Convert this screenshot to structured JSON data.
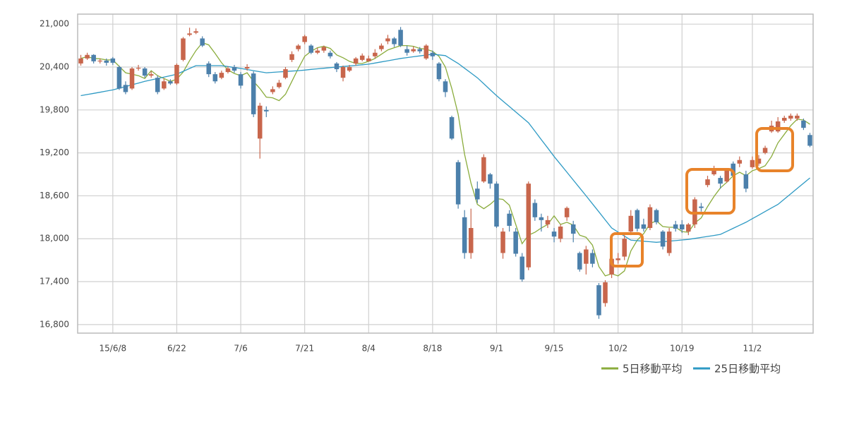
{
  "chart_data": {
    "type": "candlestick",
    "categories": [
      null,
      null,
      null,
      null,
      null,
      "15/6/8",
      null,
      null,
      null,
      null,
      null,
      null,
      null,
      null,
      null,
      "6/22",
      null,
      null,
      null,
      null,
      null,
      null,
      null,
      null,
      null,
      "7/6",
      null,
      null,
      null,
      null,
      null,
      null,
      null,
      null,
      null,
      "7/21",
      null,
      null,
      null,
      null,
      null,
      null,
      null,
      null,
      null,
      "8/4",
      null,
      null,
      null,
      null,
      null,
      null,
      null,
      null,
      null,
      "8/18",
      null,
      null,
      null,
      null,
      null,
      null,
      null,
      null,
      null,
      "9/1",
      null,
      null,
      null,
      null,
      null,
      null,
      null,
      null,
      "9/15",
      null,
      null,
      null,
      null,
      null,
      null,
      null,
      null,
      null,
      "10/2",
      null,
      null,
      null,
      null,
      null,
      null,
      null,
      null,
      null,
      "10/19",
      null,
      null,
      null,
      null,
      null,
      null,
      null,
      null,
      null,
      null,
      "11/2",
      null,
      null,
      null,
      null,
      null,
      null,
      null,
      null,
      null
    ],
    "open": [
      20450,
      20520,
      20570,
      20480,
      20490,
      20520,
      20400,
      20150,
      20100,
      20380,
      20380,
      20280,
      20250,
      20100,
      20200,
      20170,
      20500,
      20850,
      20880,
      20800,
      20450,
      20300,
      20250,
      20330,
      20400,
      20300,
      20380,
      20310,
      19400,
      19800,
      20050,
      20120,
      20250,
      20500,
      20650,
      20750,
      20700,
      20600,
      20630,
      20600,
      20450,
      20250,
      20350,
      20450,
      20500,
      20480,
      20550,
      20650,
      20760,
      20800,
      20920,
      20650,
      20620,
      20650,
      20520,
      20600,
      20450,
      20200,
      19700,
      19070,
      18300,
      17800,
      18700,
      18800,
      18900,
      18770,
      17800,
      18350,
      18100,
      17750,
      17600,
      18500,
      18300,
      18200,
      18100,
      18000,
      18300,
      18200,
      17800,
      17650,
      17800,
      17350,
      17100,
      17500,
      17700,
      17750,
      18100,
      18400,
      18200,
      18150,
      18400,
      18100,
      17800,
      18200,
      18200,
      18100,
      18200,
      18450,
      18750,
      18900,
      18850,
      18800,
      19050,
      19050,
      18900,
      19000,
      19050,
      19200,
      19500,
      19500,
      19650,
      19680,
      19680,
      19650,
      19450
    ],
    "high": [
      20570,
      20600,
      20580,
      20520,
      20520,
      20540,
      20420,
      20200,
      20400,
      20430,
      20400,
      20340,
      20280,
      20240,
      20230,
      20450,
      20820,
      20950,
      20940,
      20830,
      20480,
      20330,
      20350,
      20410,
      20430,
      20330,
      20440,
      20340,
      19900,
      19850,
      20130,
      20220,
      20400,
      20620,
      20720,
      20850,
      20720,
      20670,
      20700,
      20630,
      20470,
      20420,
      20430,
      20540,
      20590,
      20560,
      20650,
      20730,
      20850,
      20820,
      20960,
      20700,
      20690,
      20680,
      20720,
      20630,
      20470,
      20230,
      19720,
      19100,
      18400,
      18420,
      18800,
      19180,
      18920,
      18800,
      18150,
      18400,
      18150,
      17800,
      18800,
      18550,
      18350,
      18320,
      18150,
      18200,
      18450,
      18250,
      17820,
      17900,
      17850,
      17380,
      17420,
      17780,
      17800,
      18050,
      18400,
      18420,
      18280,
      18480,
      18420,
      18120,
      18150,
      18250,
      18260,
      18220,
      18580,
      18500,
      18880,
      19020,
      18880,
      18980,
      19080,
      19150,
      18950,
      19150,
      19170,
      19300,
      19650,
      19700,
      19720,
      19750,
      19750,
      19680,
      19480
    ],
    "low": [
      20420,
      20500,
      20450,
      20450,
      20420,
      20430,
      20080,
      20020,
      20080,
      20350,
      20250,
      20250,
      20020,
      20080,
      20150,
      20150,
      20480,
      20830,
      20860,
      20680,
      20260,
      20170,
      20230,
      20310,
      20320,
      20100,
      20350,
      19700,
      19120,
      19700,
      20020,
      20100,
      20230,
      20470,
      20620,
      20720,
      20580,
      20580,
      20600,
      20520,
      20330,
      20200,
      20330,
      20420,
      20480,
      20480,
      20520,
      20620,
      20720,
      20680,
      20680,
      20560,
      20600,
      20590,
      20500,
      20500,
      20200,
      19980,
      19380,
      18420,
      17720,
      17720,
      18500,
      18780,
      18700,
      18150,
      17720,
      18100,
      17750,
      17400,
      17560,
      18250,
      18100,
      18150,
      17950,
      17950,
      18250,
      17950,
      17540,
      17500,
      17600,
      16880,
      17050,
      17450,
      17650,
      17700,
      18050,
      18100,
      18100,
      18120,
      18200,
      17850,
      17760,
      18100,
      18080,
      18050,
      18150,
      18380,
      18720,
      18880,
      18700,
      18780,
      18850,
      19000,
      18650,
      18980,
      19020,
      19180,
      19480,
      19480,
      19620,
      19650,
      19650,
      19520,
      19280
    ],
    "close": [
      20520,
      20570,
      20480,
      20490,
      20460,
      20460,
      20100,
      20050,
      20380,
      20390,
      20280,
      20300,
      20050,
      20200,
      20170,
      20430,
      20800,
      20870,
      20900,
      20700,
      20300,
      20200,
      20320,
      20380,
      20350,
      20140,
      20400,
      19740,
      19860,
      19780,
      20090,
      20180,
      20370,
      20580,
      20700,
      20830,
      20600,
      20630,
      20680,
      20550,
      20370,
      20400,
      20400,
      20520,
      20560,
      20520,
      20600,
      20700,
      20800,
      20720,
      20700,
      20600,
      20650,
      20620,
      20700,
      20550,
      20230,
      20050,
      19400,
      18480,
      17800,
      18150,
      18550,
      19140,
      18770,
      18170,
      18100,
      18180,
      17790,
      17430,
      18770,
      18300,
      18260,
      18260,
      18030,
      18170,
      18430,
      18070,
      17570,
      17850,
      17650,
      16930,
      17390,
      17720,
      17725,
      18000,
      18320,
      18140,
      18140,
      18440,
      18230,
      17890,
      18100,
      18140,
      18130,
      18200,
      18550,
      18430,
      18830,
      18950,
      18770,
      18950,
      18880,
      19100,
      18700,
      19100,
      19120,
      19270,
      19580,
      19640,
      19690,
      19720,
      19720,
      19550,
      19300
    ],
    "up_color": "#c8664c",
    "down_color": "#4c80ab",
    "series": [
      {
        "name": "5日移動平均",
        "color": "#8aac3c",
        "values": [
          20520,
          20545,
          20520,
          20515,
          20500,
          20500,
          20410,
          20320,
          20300,
          20280,
          20240,
          20350,
          20280,
          20240,
          20200,
          20230,
          20330,
          20490,
          20630,
          20740,
          20710,
          20590,
          20460,
          20360,
          20310,
          20280,
          20320,
          20200,
          20100,
          19980,
          19970,
          19930,
          20020,
          20200,
          20380,
          20550,
          20620,
          20670,
          20690,
          20660,
          20570,
          20530,
          20480,
          20450,
          20450,
          20480,
          20520,
          20580,
          20640,
          20670,
          20700,
          20700,
          20690,
          20660,
          20650,
          20620,
          20550,
          20400,
          20100,
          19740,
          19180,
          18780,
          18480,
          18420,
          18480,
          18560,
          18550,
          18470,
          18200,
          17930,
          18050,
          18090,
          18150,
          18200,
          18320,
          18200,
          18230,
          18190,
          18050,
          18020,
          17910,
          17610,
          17480,
          17510,
          17480,
          17550,
          17830,
          17980,
          18070,
          18210,
          18250,
          18170,
          18160,
          18160,
          18100,
          18090,
          18220,
          18290,
          18450,
          18590,
          18710,
          18790,
          18880,
          18930,
          18880,
          18950,
          18980,
          19020,
          19150,
          19340,
          19460,
          19580,
          19670,
          19660,
          19600
        ]
      },
      {
        "name": "25日移動平均",
        "color": "#2e9ac4",
        "values": [
          20000,
          20016,
          20032,
          20048,
          20064,
          20080,
          20104,
          20128,
          20152,
          20176,
          20200,
          20220,
          20240,
          20260,
          20280,
          20300,
          20340,
          20380,
          20420,
          20420,
          20420,
          20420,
          20420,
          20407,
          20393,
          20380,
          20365,
          20350,
          20335,
          20320,
          20326,
          20332,
          20338,
          20344,
          20350,
          20358,
          20367,
          20375,
          20383,
          20392,
          20400,
          20408,
          20416,
          20424,
          20432,
          20440,
          20456,
          20472,
          20488,
          20504,
          20520,
          20532,
          20544,
          20556,
          20568,
          20580,
          20570,
          20560,
          20505,
          20450,
          20383,
          20317,
          20250,
          20167,
          20083,
          20000,
          19924,
          19848,
          19772,
          19696,
          19620,
          19503,
          19385,
          19268,
          19150,
          19040,
          18930,
          18820,
          18710,
          18600,
          18488,
          18375,
          18263,
          18150,
          18093,
          18037,
          17980,
          17973,
          17965,
          17958,
          17950,
          17958,
          17966,
          17974,
          17982,
          17990,
          18004,
          18018,
          18032,
          18046,
          18060,
          18103,
          18145,
          18188,
          18230,
          18280,
          18330,
          18380,
          18430,
          18480,
          18554,
          18628,
          18702,
          18776,
          18850
        ]
      }
    ],
    "ylim": [
      16680,
      21140
    ],
    "yticks": [
      {
        "value": 16800,
        "label": "16,800"
      },
      {
        "value": 17400,
        "label": "17,400"
      },
      {
        "value": 18000,
        "label": "18,000"
      },
      {
        "value": 18600,
        "label": "18,600"
      },
      {
        "value": 19200,
        "label": "19,200"
      },
      {
        "value": 19800,
        "label": "19,800"
      },
      {
        "value": 20400,
        "label": "20,400"
      },
      {
        "value": 21000,
        "label": "21,000"
      }
    ],
    "grid": true,
    "legend": "bottom-right"
  }
}
